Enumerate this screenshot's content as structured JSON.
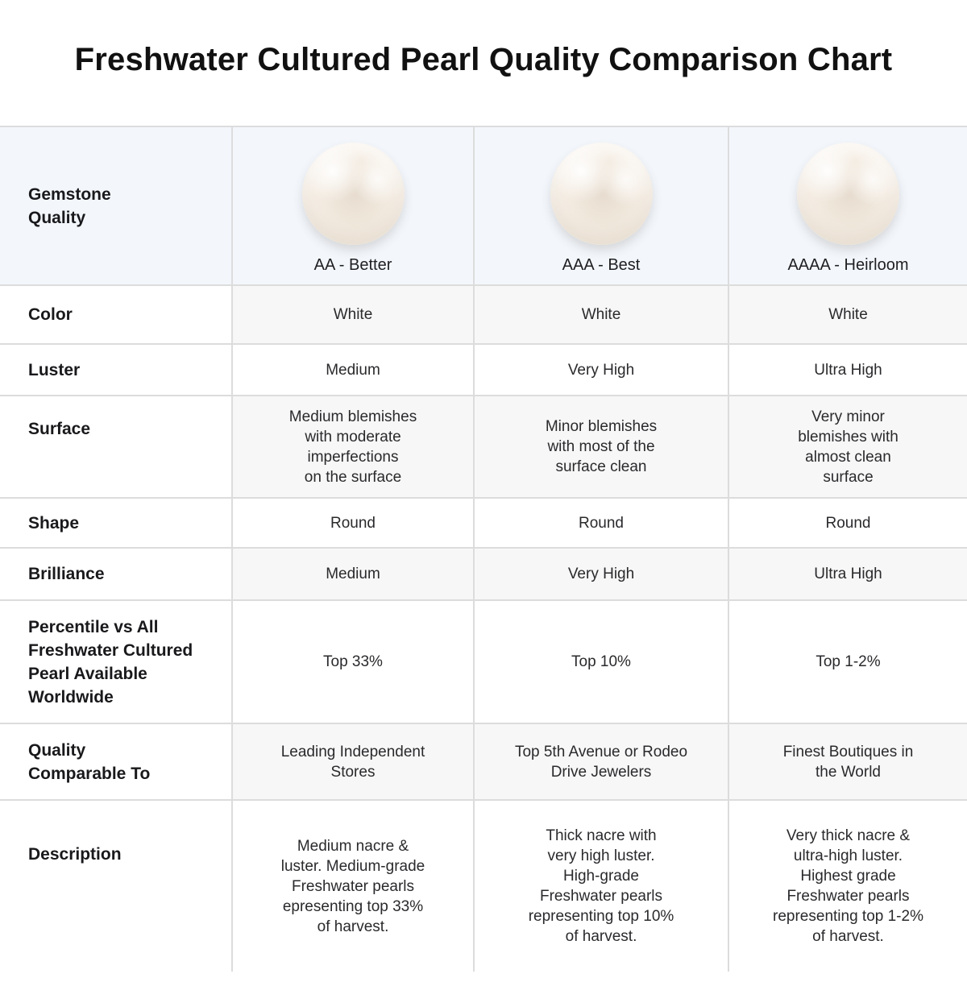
{
  "chart_data": {
    "type": "table",
    "title": "Freshwater Cultured Pearl Quality Comparison Chart",
    "header": {
      "label": "Gemstone\nQuality",
      "grades": [
        "AA - Better",
        "AAA - Best",
        "AAAA - Heirloom"
      ],
      "pearl_icons": [
        "pearl-image",
        "pearl-image",
        "pearl-image"
      ]
    },
    "rows": [
      {
        "label": "Color",
        "values": [
          "White",
          "White",
          "White"
        ]
      },
      {
        "label": "Luster",
        "values": [
          "Medium",
          "Very High",
          "Ultra High"
        ]
      },
      {
        "label": "Surface",
        "values": [
          "Medium blemishes\nwith moderate\nimperfections\non the surface",
          "Minor blemishes\nwith most of the\nsurface clean",
          "Very minor\nblemishes with\nalmost clean\nsurface"
        ]
      },
      {
        "label": "Shape",
        "values": [
          "Round",
          "Round",
          "Round"
        ]
      },
      {
        "label": "Brilliance",
        "values": [
          "Medium",
          "Very High",
          "Ultra High"
        ]
      },
      {
        "label": "Percentile vs All\nFreshwater Cultured\nPearl Available\nWorldwide",
        "values": [
          "Top 33%",
          "Top 10%",
          "Top 1-2%"
        ]
      },
      {
        "label": "Quality\nComparable To",
        "values": [
          "Leading Independent\nStores",
          "Top 5th Avenue or Rodeo\nDrive Jewelers",
          "Finest Boutiques in\nthe World"
        ]
      },
      {
        "label": "Description",
        "values": [
          "Medium nacre &\nluster. Medium-grade\nFreshwater pearls\nepresenting top 33%\nof harvest.",
          "Thick nacre with\nvery high luster.\nHigh-grade\nFreshwater pearls\nrepresenting top 10%\nof harvest.",
          "Very thick nacre &\nultra-high luster.\nHighest grade\nFreshwater pearls\nrepresenting top 1-2%\nof harvest."
        ]
      }
    ],
    "layout": {
      "legend_position": "none",
      "grid": "on",
      "row_shading": "alternate data cells shaded starting with Color row",
      "header_bg": "#f3f7fc",
      "shaded_bg": "#f7f7f7",
      "border_color": "#dcdcdc",
      "text_color": "#1d1d1f"
    }
  }
}
